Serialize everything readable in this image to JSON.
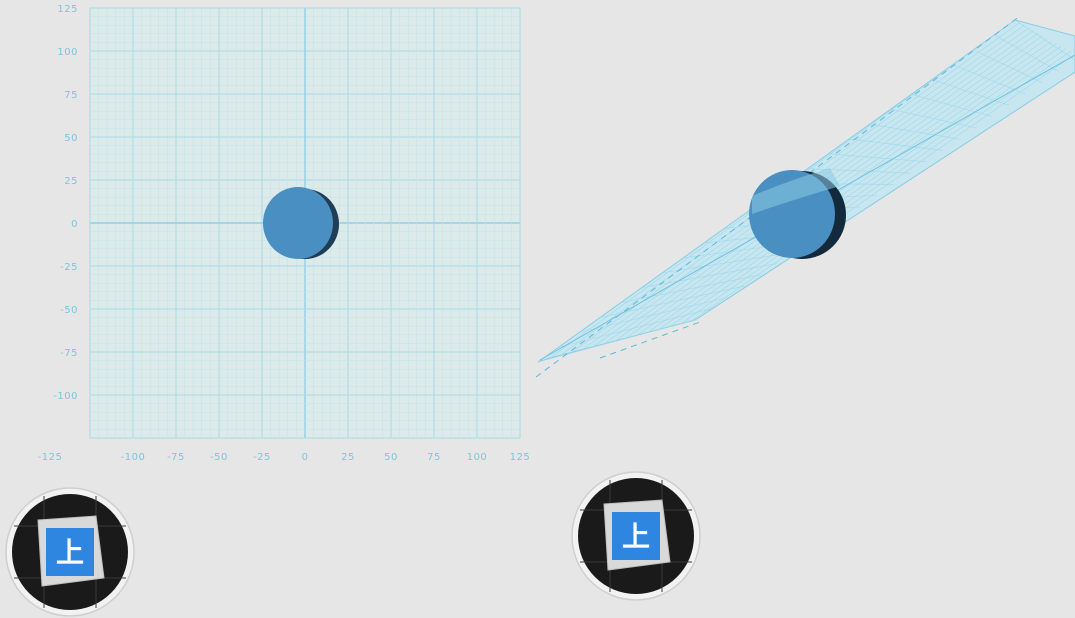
{
  "grid_view": {
    "x_ticks": [
      "-125",
      "-100",
      "-75",
      "-50",
      "-25",
      "0",
      "25",
      "50",
      "75",
      "100",
      "125"
    ],
    "y_ticks": [
      "125",
      "100",
      "75",
      "50",
      "25",
      "0",
      "-25",
      "-50",
      "-75",
      "-100",
      "-125"
    ],
    "range": [
      -125,
      125
    ],
    "object": {
      "shape": "cylinder",
      "center": [
        0,
        0
      ],
      "radius": 20
    }
  },
  "view_cubes": [
    {
      "name": "view-cube-left",
      "face_label": "上"
    },
    {
      "name": "view-cube-right",
      "face_label": "上"
    }
  ],
  "colors": {
    "background": "#e6e6e6",
    "grid_fill": "#dcebea",
    "grid_line": "#b9dde8",
    "grid_major": "#8fd0e6",
    "tick_text": "#7cc6dc",
    "object_fill": "#4a8fc1",
    "object_shadow": "#1f3d55",
    "cube_face": "#2f86e0"
  }
}
